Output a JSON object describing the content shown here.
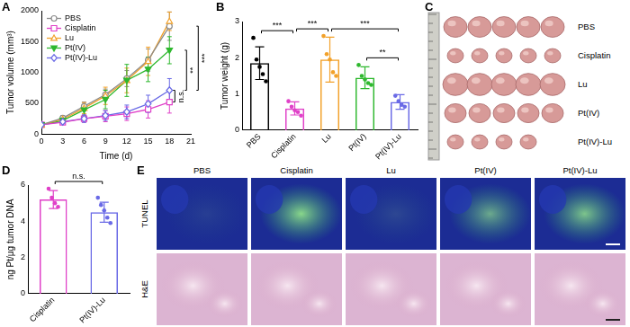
{
  "chart_data": [
    {
      "panel": "A",
      "type": "line",
      "x_label": "Time (d)",
      "y_label": "Tumor volume (mm³)",
      "x": [
        0,
        3,
        6,
        9,
        12,
        15,
        18
      ],
      "series": [
        {
          "name": "PBS",
          "color": "#8c8c8c",
          "marker": "open-circle",
          "values": [
            150,
            260,
            450,
            640,
            900,
            1200,
            1750
          ],
          "errors": [
            20,
            40,
            70,
            90,
            130,
            180,
            230
          ]
        },
        {
          "name": "Cisplatin",
          "color": "#e040c8",
          "marker": "open-square",
          "values": [
            150,
            190,
            250,
            290,
            330,
            400,
            520
          ],
          "errors": [
            20,
            30,
            60,
            90,
            110,
            140,
            180
          ]
        },
        {
          "name": "Lu",
          "color": "#f2a12a",
          "marker": "open-triangle",
          "values": [
            150,
            240,
            420,
            620,
            870,
            1180,
            1830
          ],
          "errors": [
            20,
            50,
            90,
            140,
            200,
            230,
            150
          ]
        },
        {
          "name": "Pt(IV)",
          "color": "#2eb82e",
          "marker": "triangle-down",
          "values": [
            150,
            220,
            390,
            560,
            870,
            1050,
            1360
          ],
          "errors": [
            20,
            40,
            90,
            150,
            260,
            200,
            220
          ]
        },
        {
          "name": "Pt(IV)-Lu",
          "color": "#6a6ae6",
          "marker": "open-diamond",
          "values": [
            150,
            200,
            250,
            300,
            360,
            490,
            710
          ],
          "errors": [
            20,
            40,
            60,
            80,
            110,
            140,
            190
          ]
        }
      ],
      "xlim": [
        0,
        21
      ],
      "xticks": [
        0,
        3,
        6,
        9,
        12,
        15,
        18,
        21
      ],
      "ylim": [
        0,
        2000
      ],
      "yticks": [
        0,
        500,
        1000,
        1500,
        2000
      ],
      "grid": false,
      "legend": "upper left",
      "annotations": [
        {
          "text": "n.s.",
          "between": [
            "Cisplatin",
            "Pt(IV)-Lu"
          ]
        },
        {
          "text": "**",
          "between": [
            "Pt(IV)",
            "Pt(IV)-Lu"
          ]
        },
        {
          "text": "***",
          "between": [
            "PBS",
            "Pt(IV)-Lu"
          ]
        }
      ]
    },
    {
      "panel": "B",
      "type": "bar",
      "y_label": "Tumor weight (g)",
      "categories": [
        "PBS",
        "Cisplatin",
        "Lu",
        "Pt(IV)",
        "Pt(IV)-Lu"
      ],
      "values": [
        1.85,
        0.6,
        1.95,
        1.45,
        0.78
      ],
      "errors": [
        0.45,
        0.18,
        0.62,
        0.3,
        0.2
      ],
      "points": [
        [
          2.55,
          1.95,
          1.75,
          1.55,
          1.35
        ],
        [
          0.8,
          0.65,
          0.55,
          0.5,
          0.4
        ],
        [
          2.6,
          2.1,
          1.95,
          1.6,
          1.5
        ],
        [
          1.8,
          1.5,
          1.4,
          1.3,
          1.25
        ],
        [
          0.95,
          0.8,
          0.7,
          0.65
        ]
      ],
      "colors": [
        "#000000",
        "#e040c8",
        "#f2a12a",
        "#2eb82e",
        "#6a6ae6"
      ],
      "ylim": [
        0,
        3
      ],
      "yticks": [
        0,
        1,
        2,
        3
      ],
      "grid": false,
      "annotations": [
        {
          "text": "***",
          "between": [
            "PBS",
            "Cisplatin"
          ]
        },
        {
          "text": "***",
          "between": [
            "Cisplatin",
            "Lu"
          ]
        },
        {
          "text": "***",
          "between": [
            "Lu",
            "Pt(IV)-Lu"
          ]
        },
        {
          "text": "**",
          "between": [
            "Pt(IV)",
            "Pt(IV)-Lu"
          ]
        }
      ]
    },
    {
      "panel": "D",
      "type": "bar",
      "y_label": "ng Pt/μg tumor DNA",
      "categories": [
        "Cisplatin",
        "Pt(IV)-Lu"
      ],
      "values": [
        5.2,
        4.5
      ],
      "errors": [
        0.5,
        0.55
      ],
      "points": [
        [
          5.8,
          5.3,
          5.0,
          4.8
        ],
        [
          5.3,
          4.9,
          4.6,
          4.2,
          3.9
        ]
      ],
      "colors": [
        "#e040c8",
        "#6a6ae6"
      ],
      "ylim": [
        0,
        6
      ],
      "yticks": [
        0,
        2,
        4,
        6
      ],
      "grid": false,
      "annotations": [
        {
          "text": "n.s.",
          "between": [
            "Cisplatin",
            "Pt(IV)-Lu"
          ]
        }
      ]
    }
  ],
  "image_panels": [
    {
      "panel": "C",
      "row_labels": [
        "PBS",
        "Cisplatin",
        "Lu",
        "Pt(IV)",
        "Pt(IV)-Lu"
      ]
    },
    {
      "panel": "E",
      "column_labels": [
        "PBS",
        "Cisplatin",
        "Lu",
        "Pt(IV)",
        "Pt(IV)-Lu"
      ],
      "row_labels": [
        "TUNEL",
        "H&E"
      ]
    }
  ]
}
